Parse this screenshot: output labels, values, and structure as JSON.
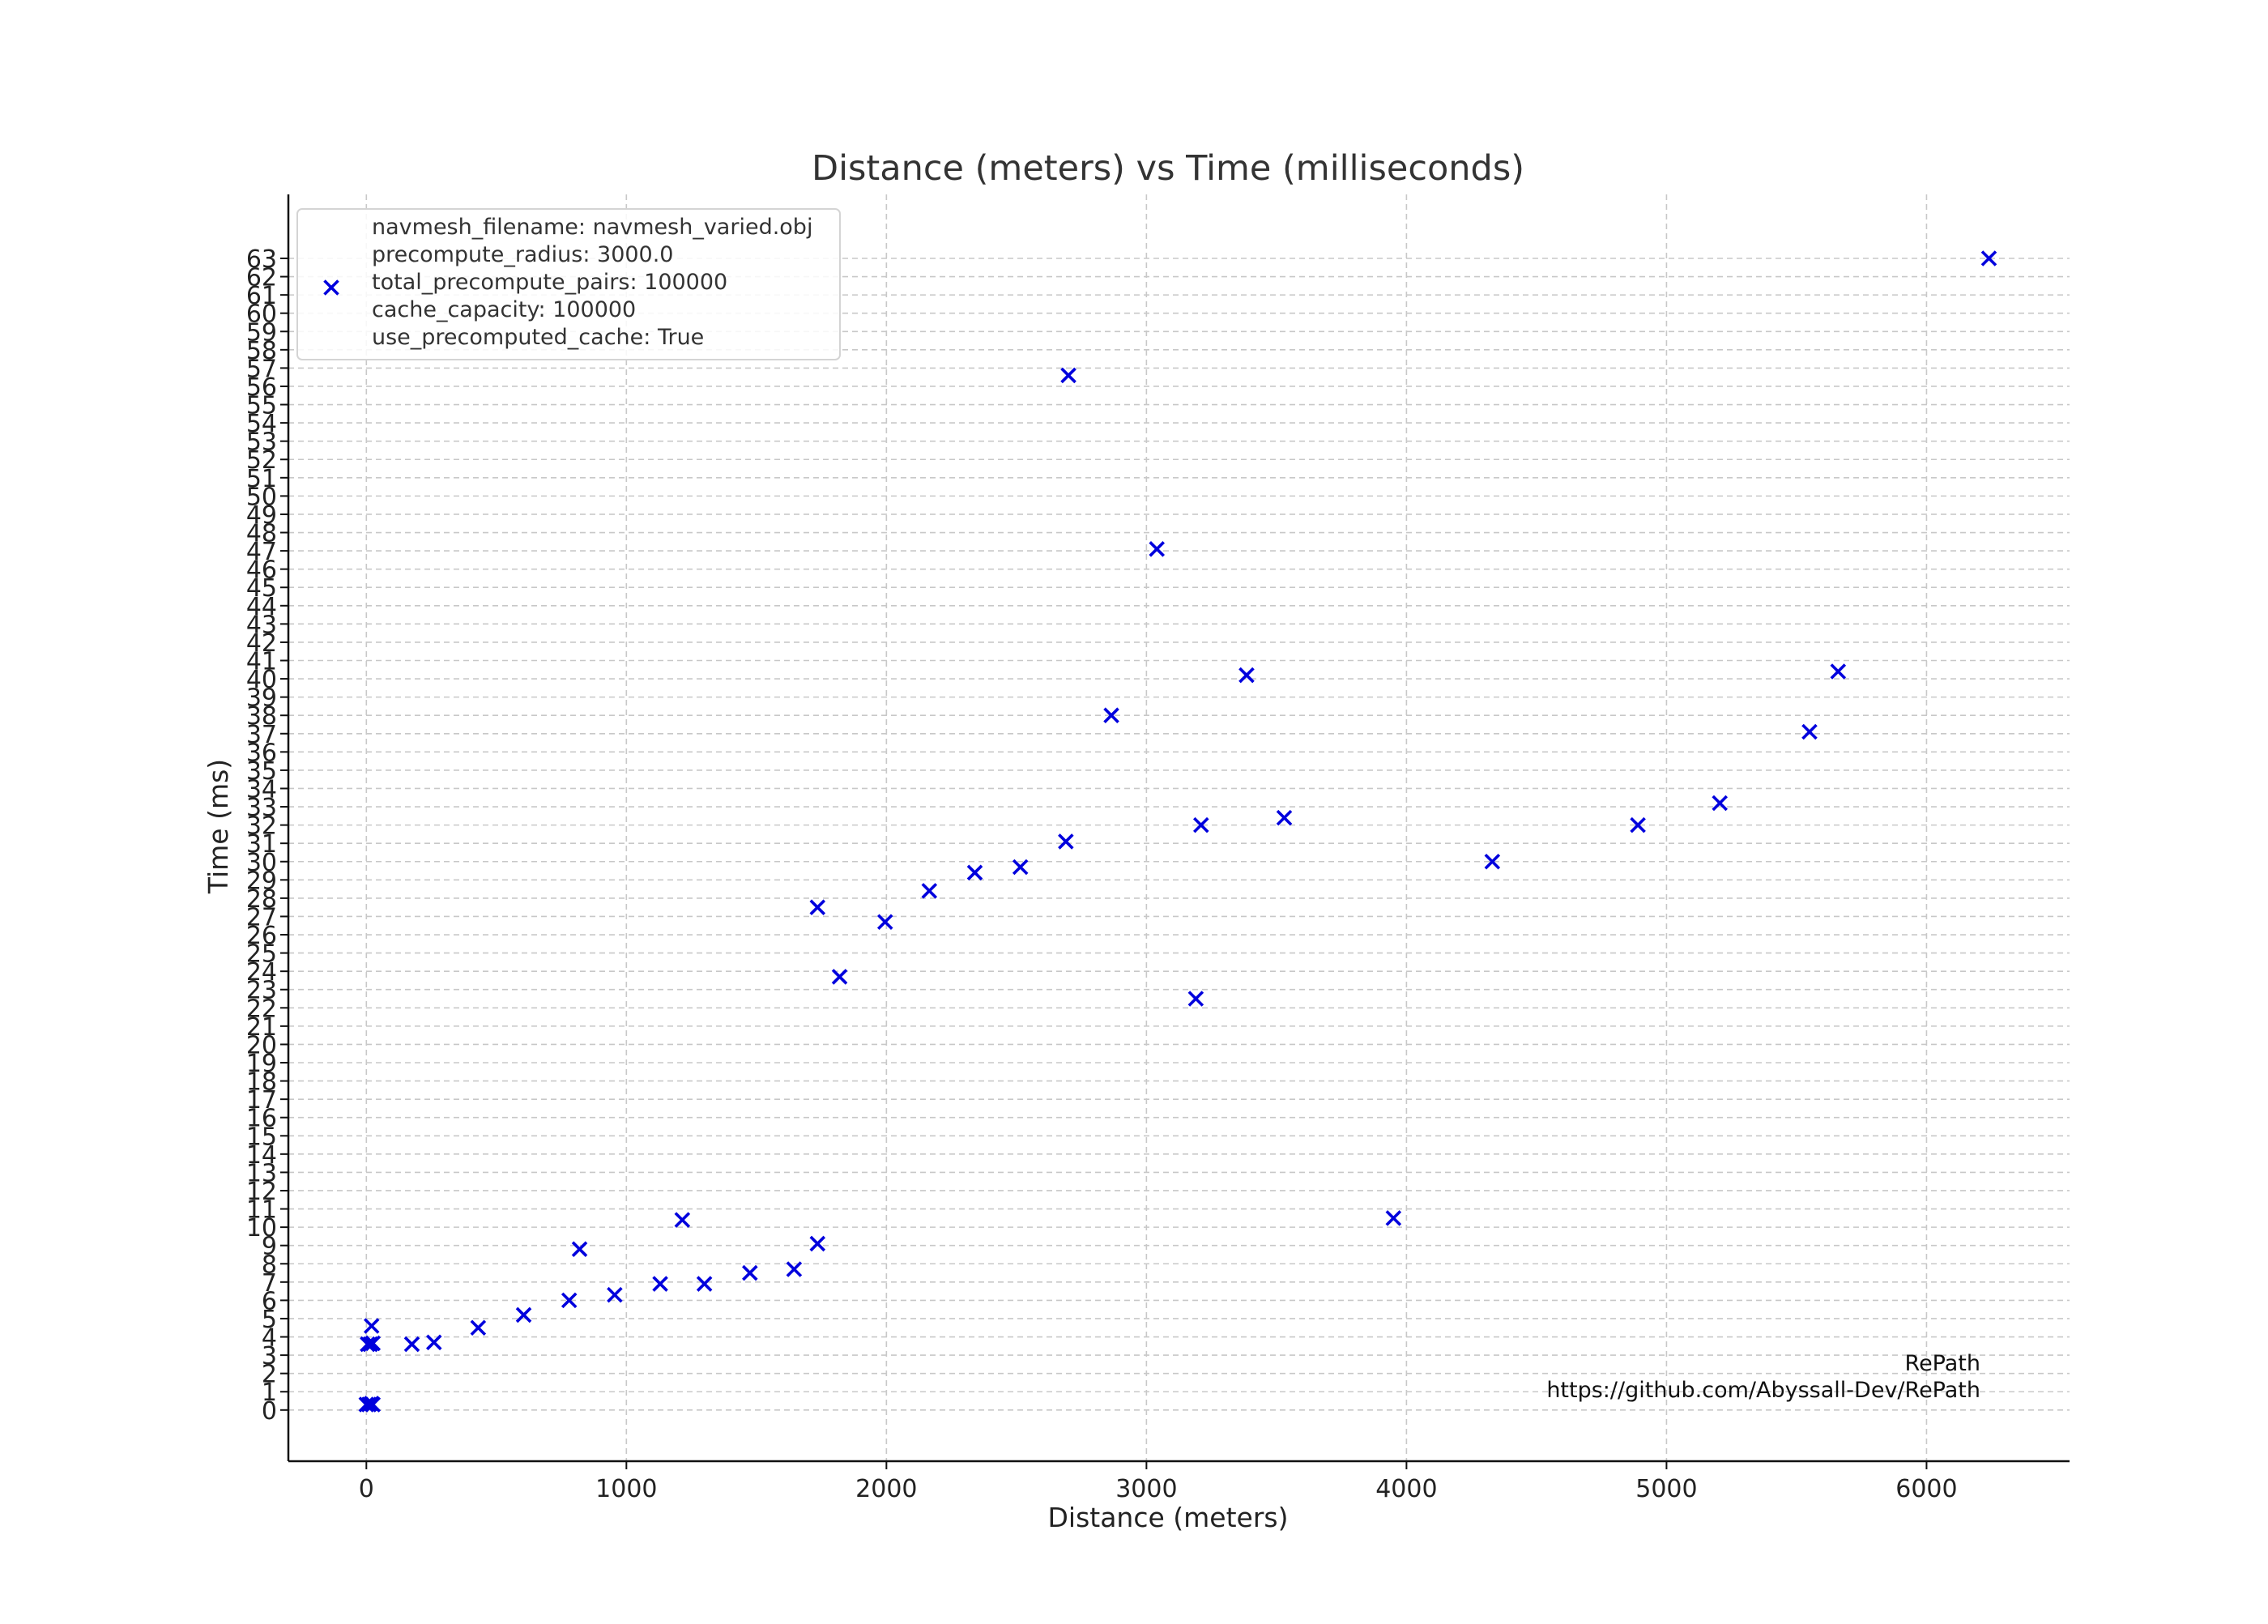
{
  "chart_data": {
    "type": "scatter",
    "title": "Distance (meters) vs Time (milliseconds)",
    "xlabel": "Distance (meters)",
    "ylabel": "Time (ms)",
    "xlim": [
      -300,
      6550
    ],
    "ylim": [
      -2.8,
      66.5
    ],
    "xticks": [
      0,
      1000,
      2000,
      3000,
      4000,
      5000,
      6000
    ],
    "yticks": [
      0,
      1,
      2,
      3,
      4,
      5,
      6,
      7,
      8,
      9,
      10,
      11,
      12,
      13,
      14,
      15,
      16,
      17,
      18,
      19,
      20,
      21,
      22,
      23,
      24,
      25,
      26,
      27,
      28,
      29,
      30,
      31,
      32,
      33,
      34,
      35,
      36,
      37,
      38,
      39,
      40,
      41,
      42,
      43,
      44,
      45,
      46,
      47,
      48,
      49,
      50,
      51,
      52,
      53,
      54,
      55,
      56,
      57,
      58,
      59,
      60,
      61,
      62,
      63
    ],
    "grid": true,
    "legend_position": "top-left",
    "legend_lines": [
      "navmesh_filename: navmesh_varied.obj",
      "precompute_radius: 3000.0",
      "total_precompute_pairs: 100000",
      "cache_capacity: 100000",
      "use_precomputed_cache: True"
    ],
    "annotation_lines": [
      "RePath",
      "https://github.com/Abyssall-Dev/RePath"
    ],
    "marker": "x",
    "color": "#0000dd",
    "points": [
      {
        "x": 0,
        "y": 0.3
      },
      {
        "x": 10,
        "y": 0.3
      },
      {
        "x": 20,
        "y": 0.35
      },
      {
        "x": 25,
        "y": 0.3
      },
      {
        "x": 5,
        "y": 3.6
      },
      {
        "x": 15,
        "y": 3.6
      },
      {
        "x": 25,
        "y": 3.65
      },
      {
        "x": 20,
        "y": 4.6
      },
      {
        "x": 175,
        "y": 3.6
      },
      {
        "x": 260,
        "y": 3.7
      },
      {
        "x": 430,
        "y": 4.5
      },
      {
        "x": 605,
        "y": 5.2
      },
      {
        "x": 780,
        "y": 6.0
      },
      {
        "x": 820,
        "y": 8.8
      },
      {
        "x": 955,
        "y": 6.3
      },
      {
        "x": 1130,
        "y": 6.9
      },
      {
        "x": 1215,
        "y": 10.4
      },
      {
        "x": 1300,
        "y": 6.9
      },
      {
        "x": 1475,
        "y": 7.5
      },
      {
        "x": 1645,
        "y": 7.7
      },
      {
        "x": 1735,
        "y": 9.1
      },
      {
        "x": 1735,
        "y": 27.5
      },
      {
        "x": 1820,
        "y": 23.7
      },
      {
        "x": 1995,
        "y": 26.7
      },
      {
        "x": 2165,
        "y": 28.4
      },
      {
        "x": 2340,
        "y": 29.4
      },
      {
        "x": 2515,
        "y": 29.7
      },
      {
        "x": 2690,
        "y": 31.1
      },
      {
        "x": 2700,
        "y": 56.6
      },
      {
        "x": 2865,
        "y": 38.0
      },
      {
        "x": 3040,
        "y": 47.1
      },
      {
        "x": 3190,
        "y": 22.5
      },
      {
        "x": 3210,
        "y": 32.0
      },
      {
        "x": 3385,
        "y": 40.2
      },
      {
        "x": 3530,
        "y": 32.4
      },
      {
        "x": 3950,
        "y": 10.5
      },
      {
        "x": 4330,
        "y": 30.0
      },
      {
        "x": 4890,
        "y": 32.0
      },
      {
        "x": 5205,
        "y": 33.2
      },
      {
        "x": 5550,
        "y": 37.1
      },
      {
        "x": 5660,
        "y": 40.4
      },
      {
        "x": 6240,
        "y": 63.0
      }
    ]
  }
}
